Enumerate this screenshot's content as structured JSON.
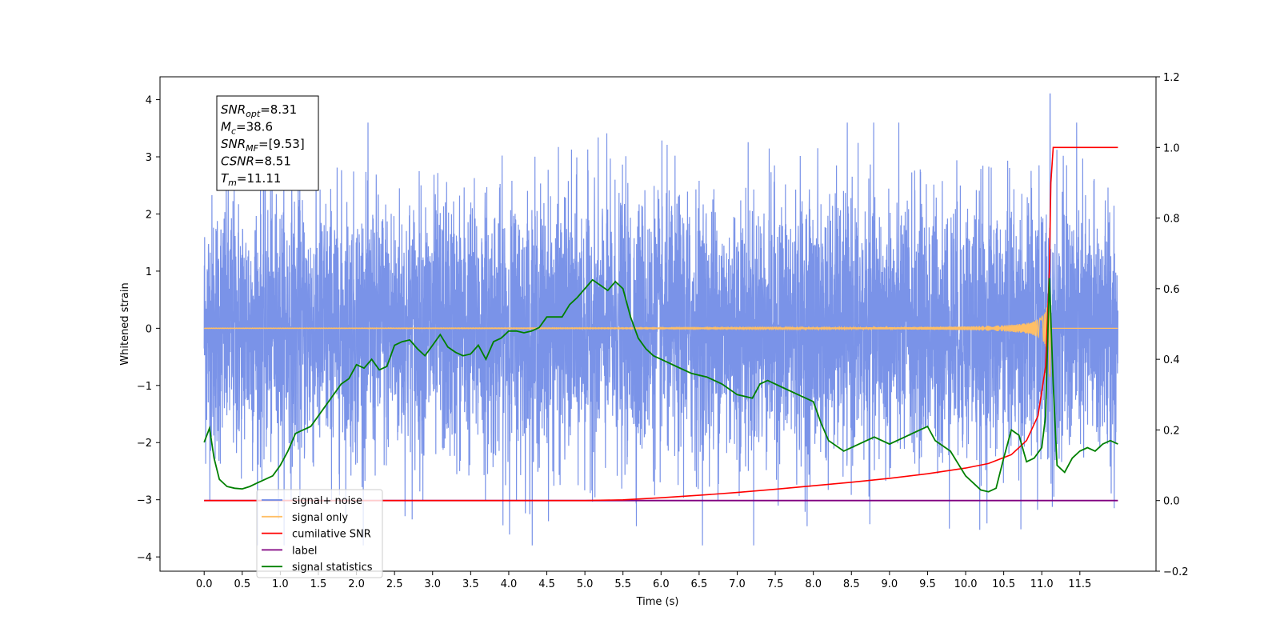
{
  "chart_data": {
    "type": "line",
    "xlabel": "Time (s)",
    "ylabel": "Whitened strain",
    "xlim": [
      -0.58,
      12.5
    ],
    "ylim": [
      -4.25,
      4.4
    ],
    "y2lim": [
      -0.2,
      1.2
    ],
    "x_ticks": [
      0.0,
      0.5,
      1.0,
      1.5,
      2.0,
      2.5,
      3.0,
      3.5,
      4.0,
      4.5,
      5.0,
      5.5,
      6.0,
      6.5,
      7.0,
      7.5,
      8.0,
      8.5,
      9.0,
      9.5,
      10.0,
      10.5,
      11.0,
      11.5
    ],
    "x_tick_labels": [
      "0.0",
      "0.5",
      "1.0",
      "1.5",
      "2.0",
      "2.5",
      "3.0",
      "3.5",
      "4.0",
      "4.5",
      "5.0",
      "5.5",
      "6.0",
      "6.5",
      "7.0",
      "7.5",
      "8.0",
      "8.5",
      "9.0",
      "9.5",
      "10.0",
      "10.5",
      "11.0",
      "11.5"
    ],
    "y_ticks": [
      -4,
      -3,
      -2,
      -1,
      0,
      1,
      2,
      3,
      4
    ],
    "y_tick_labels": [
      "−4",
      "−3",
      "−2",
      "−1",
      "0",
      "1",
      "2",
      "3",
      "4"
    ],
    "y2_ticks": [
      -0.2,
      0.0,
      0.2,
      0.4,
      0.6,
      0.8,
      1.0,
      1.2
    ],
    "y2_tick_labels": [
      "−0.2",
      "0.0",
      "0.2",
      "0.4",
      "0.6",
      "0.8",
      "1.0",
      "1.2"
    ],
    "grid": false,
    "legend_position": "lower-left",
    "series": [
      {
        "name": "signal+ noise",
        "axis": "left",
        "color": "#6b87e6",
        "x_range": [
          0.0,
          12.0
        ],
        "approx_range": [
          -3.8,
          4.1
        ],
        "peak": {
          "x": 11.11,
          "y": 4.1
        }
      },
      {
        "name": "signal only",
        "axis": "left",
        "color": "#ffbf66",
        "x_range": [
          0.0,
          12.0
        ],
        "chirp_merger_time": 11.11,
        "peak_amplitude": 1.0
      },
      {
        "name": "cumilative SNR",
        "axis": "right",
        "color": "#ff0000",
        "x": [
          0.0,
          5.0,
          5.5,
          6.0,
          6.5,
          7.0,
          7.5,
          8.0,
          8.5,
          9.0,
          9.5,
          10.0,
          10.3,
          10.6,
          10.8,
          10.95,
          11.05,
          11.1,
          11.12,
          11.15,
          12.0
        ],
        "values": [
          0.0,
          0.0,
          0.002,
          0.008,
          0.015,
          0.023,
          0.032,
          0.042,
          0.052,
          0.063,
          0.076,
          0.092,
          0.105,
          0.13,
          0.17,
          0.24,
          0.38,
          0.65,
          0.9,
          1.0,
          1.0
        ]
      },
      {
        "name": "label",
        "axis": "right",
        "color": "#800080",
        "x": [
          0.0,
          12.0
        ],
        "values": [
          0.0,
          0.0
        ]
      },
      {
        "name": "signal statistics",
        "axis": "right",
        "color": "#008000",
        "x": [
          0.0,
          0.07,
          0.13,
          0.2,
          0.3,
          0.4,
          0.5,
          0.6,
          0.7,
          0.8,
          0.9,
          1.0,
          1.1,
          1.2,
          1.4,
          1.6,
          1.8,
          1.9,
          2.0,
          2.1,
          2.2,
          2.3,
          2.4,
          2.5,
          2.6,
          2.7,
          2.8,
          2.9,
          3.0,
          3.1,
          3.2,
          3.3,
          3.4,
          3.5,
          3.6,
          3.7,
          3.8,
          3.9,
          4.0,
          4.1,
          4.2,
          4.3,
          4.4,
          4.5,
          4.6,
          4.7,
          4.8,
          4.9,
          5.0,
          5.1,
          5.2,
          5.3,
          5.4,
          5.5,
          5.6,
          5.7,
          5.8,
          5.9,
          6.0,
          6.2,
          6.4,
          6.6,
          6.8,
          7.0,
          7.2,
          7.3,
          7.4,
          7.6,
          7.8,
          8.0,
          8.1,
          8.2,
          8.4,
          8.6,
          8.8,
          9.0,
          9.2,
          9.4,
          9.5,
          9.6,
          9.8,
          10.0,
          10.2,
          10.3,
          10.4,
          10.5,
          10.6,
          10.7,
          10.8,
          10.9,
          11.0,
          11.05,
          11.1,
          11.15,
          11.2,
          11.3,
          11.4,
          11.5,
          11.6,
          11.7,
          11.8,
          11.9,
          12.0
        ],
        "values": [
          0.165,
          0.205,
          0.12,
          0.06,
          0.04,
          0.035,
          0.033,
          0.04,
          0.05,
          0.06,
          0.07,
          0.1,
          0.14,
          0.19,
          0.21,
          0.27,
          0.33,
          0.345,
          0.385,
          0.375,
          0.4,
          0.37,
          0.38,
          0.44,
          0.45,
          0.455,
          0.43,
          0.41,
          0.44,
          0.47,
          0.435,
          0.42,
          0.41,
          0.415,
          0.44,
          0.4,
          0.45,
          0.46,
          0.48,
          0.48,
          0.475,
          0.48,
          0.49,
          0.52,
          0.52,
          0.52,
          0.555,
          0.575,
          0.6,
          0.625,
          0.61,
          0.595,
          0.62,
          0.6,
          0.52,
          0.46,
          0.43,
          0.41,
          0.4,
          0.38,
          0.36,
          0.35,
          0.33,
          0.3,
          0.29,
          0.33,
          0.34,
          0.32,
          0.3,
          0.28,
          0.22,
          0.17,
          0.14,
          0.16,
          0.18,
          0.16,
          0.18,
          0.2,
          0.21,
          0.17,
          0.14,
          0.07,
          0.03,
          0.025,
          0.035,
          0.12,
          0.2,
          0.185,
          0.11,
          0.12,
          0.15,
          0.24,
          0.63,
          0.33,
          0.1,
          0.08,
          0.12,
          0.14,
          0.15,
          0.14,
          0.16,
          0.17,
          0.16
        ]
      }
    ],
    "annotation": {
      "lines": [
        {
          "main": "SNR",
          "sub": "opt",
          "rest": "=8.31"
        },
        {
          "main": "M",
          "sub": "c",
          "rest": "=38.6"
        },
        {
          "main": "SNR",
          "sub": "MF",
          "rest": "=[9.53]"
        },
        {
          "main": "CSNR",
          "sub": "",
          "rest": "=8.51"
        },
        {
          "main": "T",
          "sub": "m",
          "rest": "=11.11"
        }
      ]
    }
  }
}
